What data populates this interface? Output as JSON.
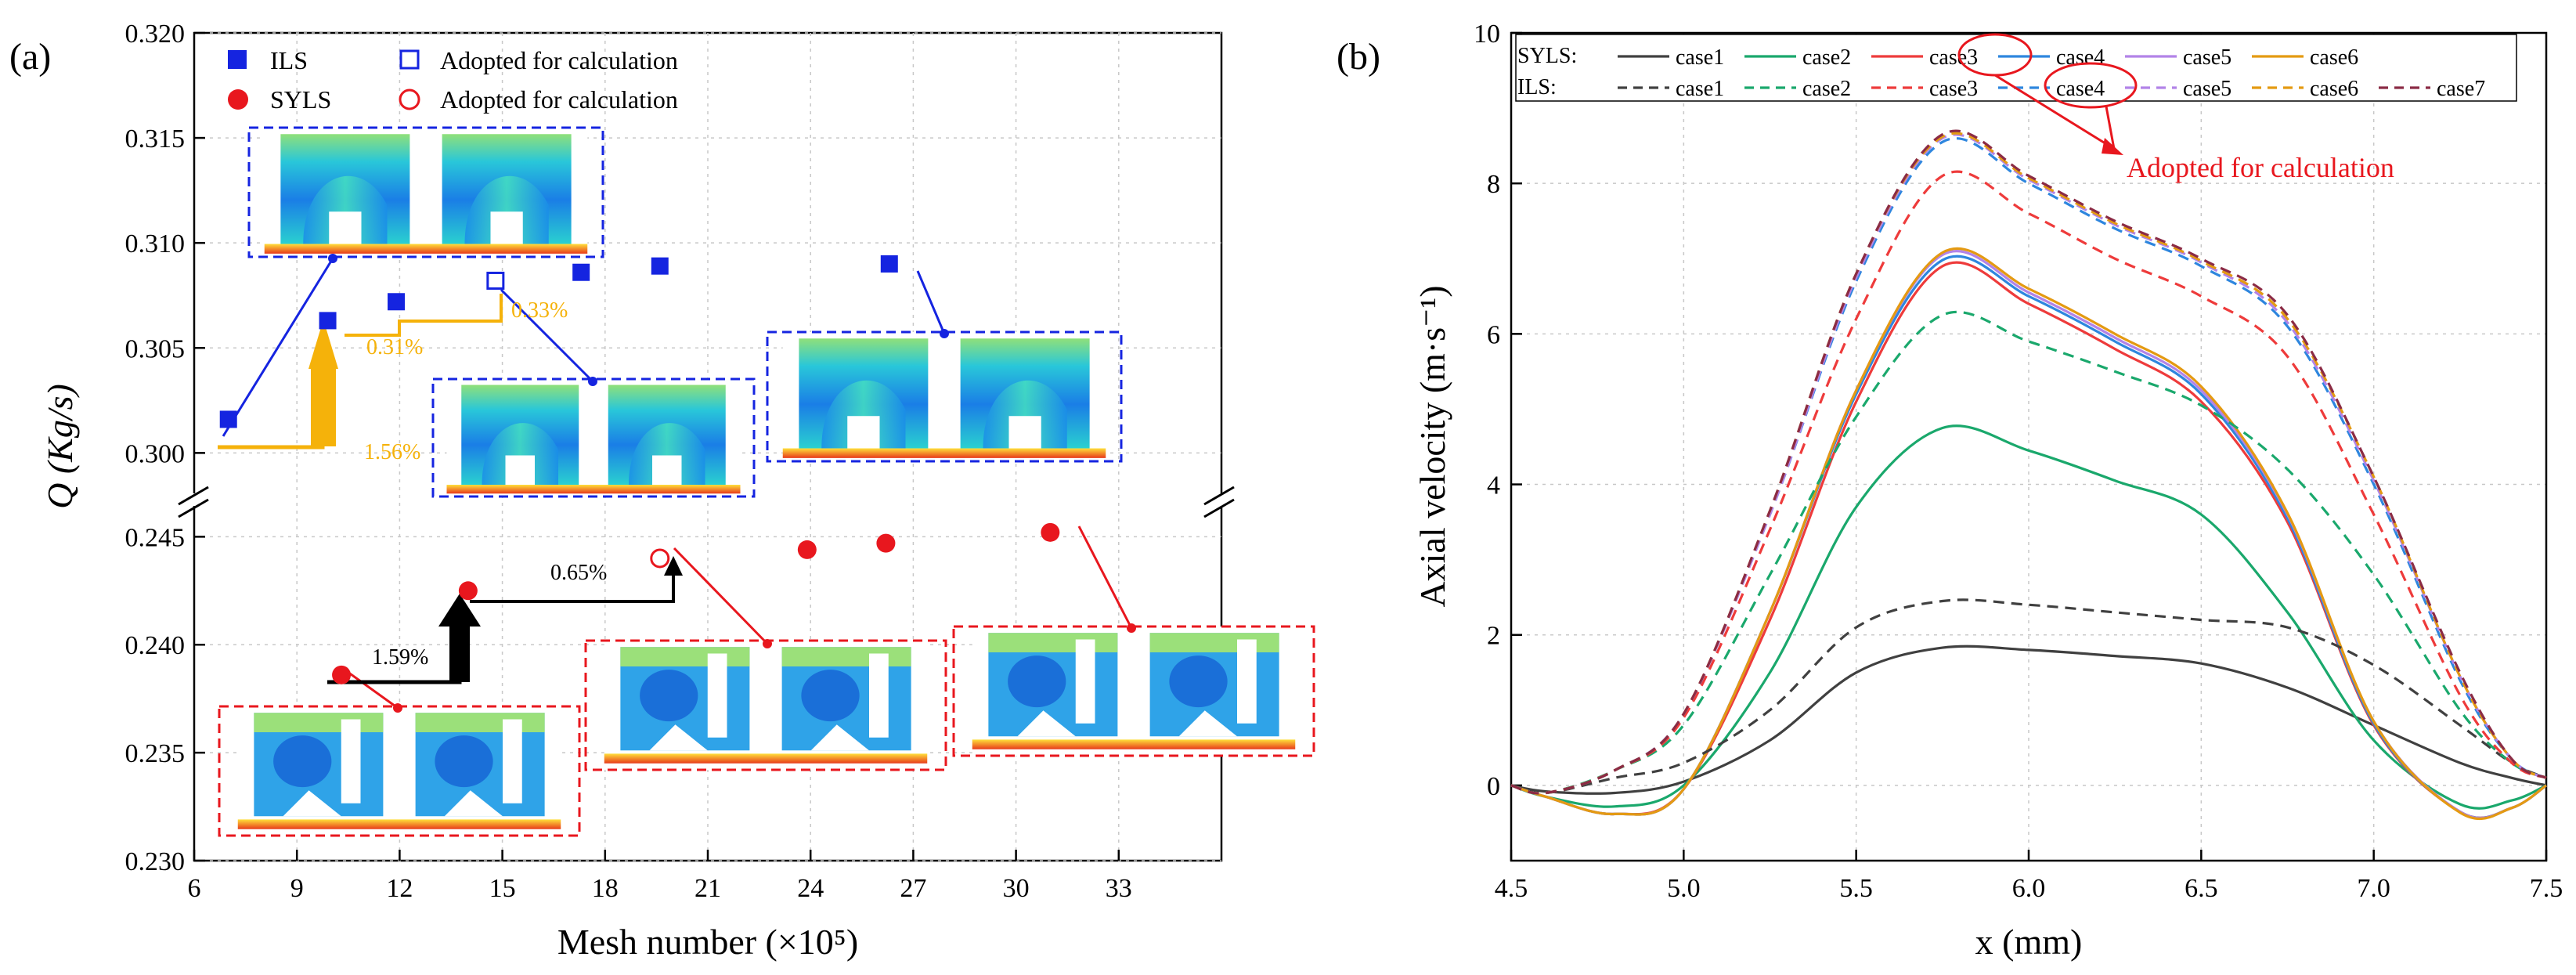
{
  "panels": {
    "a": "(a)",
    "b": "(b)"
  },
  "colors": {
    "ils": "#1524e0",
    "syls": "#e8171e",
    "orange": "#f5b20a",
    "black": "#000000",
    "grid": "#bfbfbf"
  },
  "chart_data": [
    {
      "type": "scatter",
      "panel": "(a)",
      "xlabel": "Mesh number (×10⁵)",
      "ylabel": "Q (Kg/s)",
      "xlim": [
        6,
        36
      ],
      "x_ticks": [
        "6",
        "9",
        "12",
        "15",
        "18",
        "21",
        "24",
        "27",
        "30",
        "33"
      ],
      "y_ticks_upper": [
        "0.300",
        "0.305",
        "0.310",
        "0.315",
        "0.320"
      ],
      "y_ticks_lower": [
        "0.230",
        "0.235",
        "0.240",
        "0.245"
      ],
      "ylim_upper": [
        0.298,
        0.32
      ],
      "ylim_lower": [
        0.23,
        0.2465
      ],
      "legend": [
        {
          "label": "ILS",
          "marker": "filled-square"
        },
        {
          "label": "Adopted for calculation",
          "marker": "open-square"
        },
        {
          "label": "SYLS",
          "marker": "filled-circle"
        },
        {
          "label": "Adopted for calculation",
          "marker": "open-circle"
        }
      ],
      "series": [
        {
          "name": "ILS",
          "x": [
            7.0,
            9.9,
            11.9,
            14.8,
            17.3,
            19.6,
            26.3
          ],
          "y": [
            0.3016,
            0.3063,
            0.3072,
            0.3082,
            0.3086,
            0.3089,
            0.309
          ],
          "adopted_index": 3
        },
        {
          "name": "SYLS",
          "x": [
            10.3,
            14.0,
            19.6,
            23.9,
            26.2,
            31.0
          ],
          "y": [
            0.2386,
            0.2425,
            0.244,
            0.2444,
            0.2447,
            0.2452
          ],
          "adopted_index": 2
        }
      ],
      "annotations": [
        {
          "text": "1.56%",
          "color": "orange"
        },
        {
          "text": "0.31%",
          "color": "orange"
        },
        {
          "text": "0.33%",
          "color": "orange"
        },
        {
          "text": "1.59%",
          "color": "black"
        },
        {
          "text": "0.65%",
          "color": "black"
        }
      ]
    },
    {
      "type": "line",
      "panel": "(b)",
      "xlabel": "x (mm)",
      "ylabel": "Axial velocity (m·s⁻¹)",
      "xlim": [
        4.5,
        7.5
      ],
      "ylim": [
        -1,
        10
      ],
      "x_ticks": [
        "4.5",
        "5.0",
        "5.5",
        "6.0",
        "6.5",
        "7.0",
        "7.5"
      ],
      "y_ticks": [
        "0",
        "2",
        "4",
        "6",
        "8",
        "10"
      ],
      "legend_rows": [
        {
          "title": "SYLS:",
          "entries": [
            "case1",
            "case2",
            "case3",
            "case4",
            "case5",
            "case6"
          ]
        },
        {
          "title": "ILS:",
          "entries": [
            "case1",
            "case2",
            "case3",
            "case4",
            "case5",
            "case6",
            "case7"
          ]
        }
      ],
      "callout": "Adopted for calculation",
      "x": [
        4.5,
        4.6,
        4.8,
        5.0,
        5.25,
        5.5,
        5.75,
        6.0,
        6.25,
        6.5,
        6.75,
        7.0,
        7.25,
        7.4,
        7.5
      ],
      "series": [
        {
          "name": "SYLS case1",
          "color": "#404040",
          "dash": false,
          "values": [
            0,
            -0.08,
            -0.1,
            0.05,
            0.6,
            1.5,
            1.83,
            1.8,
            1.72,
            1.62,
            1.3,
            0.8,
            0.3,
            0.1,
            0.0
          ]
        },
        {
          "name": "SYLS case2",
          "color": "#1aa86c",
          "dash": false,
          "values": [
            0,
            -0.15,
            -0.28,
            0.0,
            1.5,
            3.7,
            4.75,
            4.45,
            4.05,
            3.6,
            2.3,
            0.6,
            -0.25,
            -0.2,
            0.0
          ]
        },
        {
          "name": "SYLS case3",
          "color": "#ee3b3b",
          "dash": false,
          "values": [
            0,
            -0.15,
            -0.38,
            -0.05,
            2.2,
            5.1,
            6.9,
            6.4,
            5.8,
            5.1,
            3.5,
            0.8,
            -0.35,
            -0.3,
            0.0
          ]
        },
        {
          "name": "SYLS case4",
          "color": "#2e86de",
          "dash": false,
          "values": [
            0,
            -0.15,
            -0.38,
            -0.05,
            2.3,
            5.2,
            6.98,
            6.5,
            5.9,
            5.2,
            3.55,
            0.82,
            -0.35,
            -0.3,
            0.0
          ]
        },
        {
          "name": "SYLS case5",
          "color": "#b283e8",
          "dash": false,
          "values": [
            0,
            -0.15,
            -0.38,
            -0.05,
            2.3,
            5.25,
            7.05,
            6.55,
            5.95,
            5.25,
            3.6,
            0.85,
            -0.35,
            -0.3,
            0.0
          ]
        },
        {
          "name": "SYLS case6",
          "color": "#e49a12",
          "dash": false,
          "values": [
            0,
            -0.15,
            -0.38,
            -0.05,
            2.3,
            5.25,
            7.08,
            6.6,
            6.0,
            5.3,
            3.62,
            0.85,
            -0.36,
            -0.3,
            0.0
          ]
        },
        {
          "name": "ILS case1",
          "color": "#404040",
          "dash": true,
          "values": [
            0,
            -0.1,
            0.1,
            0.3,
            1.0,
            2.1,
            2.45,
            2.4,
            2.3,
            2.2,
            2.1,
            1.6,
            0.8,
            0.3,
            0.1
          ]
        },
        {
          "name": "ILS case2",
          "color": "#1aa86c",
          "dash": true,
          "values": [
            0,
            -0.1,
            0.2,
            0.8,
            2.8,
            4.9,
            6.25,
            5.9,
            5.5,
            5.05,
            4.2,
            2.8,
            1.0,
            0.3,
            0.1
          ]
        },
        {
          "name": "ILS case3",
          "color": "#ee3b3b",
          "dash": true,
          "values": [
            0,
            -0.1,
            0.2,
            0.9,
            3.4,
            6.2,
            8.1,
            7.6,
            7.0,
            6.5,
            5.7,
            3.6,
            1.2,
            0.3,
            0.1
          ]
        },
        {
          "name": "ILS case4",
          "color": "#2e86de",
          "dash": true,
          "values": [
            0,
            -0.1,
            0.2,
            0.95,
            3.6,
            6.7,
            8.55,
            8.0,
            7.4,
            6.9,
            6.1,
            4.0,
            1.4,
            0.35,
            0.1
          ]
        },
        {
          "name": "ILS case5",
          "color": "#b283e8",
          "dash": true,
          "values": [
            0,
            -0.1,
            0.2,
            0.95,
            3.6,
            6.75,
            8.6,
            8.05,
            7.45,
            6.95,
            6.15,
            4.05,
            1.45,
            0.35,
            0.1
          ]
        },
        {
          "name": "ILS case6",
          "color": "#e49a12",
          "dash": true,
          "values": [
            0,
            -0.1,
            0.2,
            0.95,
            3.65,
            6.8,
            8.62,
            8.07,
            7.47,
            6.97,
            6.2,
            4.1,
            1.45,
            0.35,
            0.1
          ]
        },
        {
          "name": "ILS case7",
          "color": "#8b2b45",
          "dash": true,
          "values": [
            0,
            -0.1,
            0.2,
            0.95,
            3.65,
            6.8,
            8.65,
            8.1,
            7.5,
            7.0,
            6.25,
            4.1,
            1.5,
            0.35,
            0.1
          ]
        }
      ]
    }
  ]
}
